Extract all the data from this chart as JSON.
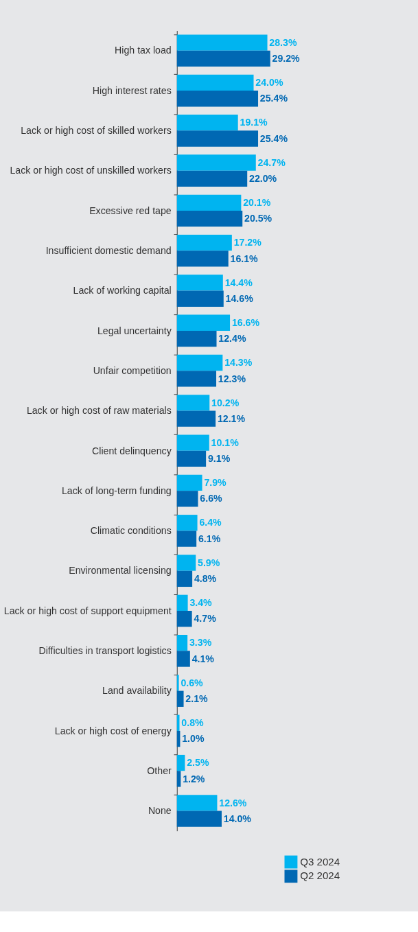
{
  "chart_data": {
    "type": "bar",
    "orientation": "horizontal",
    "categories": [
      "High tax load",
      "High interest rates",
      "Lack or high cost of skilled workers",
      "Lack or high cost of unskilled workers",
      "Excessive red tape",
      "Insufficient domestic demand",
      "Lack of working capital",
      "Legal uncertainty",
      "Unfair competition",
      "Lack or high cost of raw materials",
      "Client delinquency",
      "Lack of long-term funding",
      "Climatic conditions",
      "Environmental licensing",
      "Lack or high cost of support equipment",
      "Difficulties in transport logistics",
      "Land availability",
      "Lack or high cost of energy",
      "Other",
      "None"
    ],
    "series": [
      {
        "name": "Q3 2024",
        "color": "#00b4f0",
        "values": [
          28.3,
          24.0,
          19.1,
          24.7,
          20.1,
          17.2,
          14.4,
          16.6,
          14.3,
          10.2,
          10.1,
          7.9,
          6.4,
          5.9,
          3.4,
          3.3,
          0.6,
          0.8,
          2.5,
          12.6
        ],
        "value_labels": [
          "28.3%",
          "24.0%",
          "19.1%",
          "24.7%",
          "20.1%",
          "17.2%",
          "14.4%",
          "16.6%",
          "14.3%",
          "10.2%",
          "10.1%",
          "7.9%",
          "6.4%",
          "5.9%",
          "3.4%",
          "3.3%",
          "0.6%",
          "0.8%",
          "2.5%",
          "12.6%"
        ]
      },
      {
        "name": "Q2 2024",
        "color": "#0068b3",
        "values": [
          29.2,
          25.4,
          25.4,
          22.0,
          20.5,
          16.1,
          14.6,
          12.4,
          12.3,
          12.1,
          9.1,
          6.6,
          6.1,
          4.8,
          4.7,
          4.1,
          2.1,
          1.0,
          1.2,
          14.0
        ],
        "value_labels": [
          "29.2%",
          "25.4%",
          "25.4%",
          "22.0%",
          "20.5%",
          "16.1%",
          "14.6%",
          "12.4%",
          "12.3%",
          "12.1%",
          "9.1%",
          "6.6%",
          "6.1%",
          "4.8%",
          "4.7%",
          "4.1%",
          "2.1%",
          "1.0%",
          "1.2%",
          "14.0%"
        ]
      }
    ],
    "tick_labels": "y",
    "legend": "bottom right"
  }
}
